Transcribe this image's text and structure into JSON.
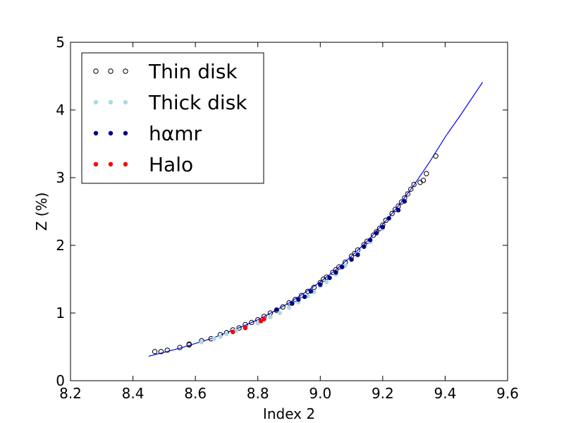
{
  "chart_data": {
    "type": "scatter",
    "title": "",
    "xlabel": "Index  2",
    "ylabel": "Z (%)",
    "xlim": [
      8.2,
      9.6
    ],
    "ylim": [
      0,
      5
    ],
    "xticks": [
      "8.2",
      "8.4",
      "8.6",
      "8.8",
      "9.0",
      "9.2",
      "9.4",
      "9.6"
    ],
    "yticks": [
      "0",
      "1",
      "2",
      "3",
      "4",
      "5"
    ],
    "grid": false,
    "legend_position": "top-left",
    "legend": [
      {
        "label": "Thin disk",
        "marker": "open-circle",
        "color": "#000000"
      },
      {
        "label": "Thick disk",
        "marker": "filled-circle",
        "color": "#add8e6"
      },
      {
        "label": "hαmr",
        "marker": "filled-circle",
        "color": "#00008b"
      },
      {
        "label": "Halo",
        "marker": "filled-circle",
        "color": "#ff0000"
      }
    ],
    "fit_curve": {
      "color": "#0000ff",
      "points": [
        [
          8.45,
          0.36
        ],
        [
          8.5,
          0.42
        ],
        [
          8.55,
          0.48
        ],
        [
          8.6,
          0.55
        ],
        [
          8.65,
          0.62
        ],
        [
          8.7,
          0.71
        ],
        [
          8.75,
          0.8
        ],
        [
          8.8,
          0.9
        ],
        [
          8.85,
          1.02
        ],
        [
          8.9,
          1.15
        ],
        [
          8.95,
          1.3
        ],
        [
          9.0,
          1.46
        ],
        [
          9.05,
          1.64
        ],
        [
          9.1,
          1.84
        ],
        [
          9.15,
          2.06
        ],
        [
          9.2,
          2.31
        ],
        [
          9.25,
          2.58
        ],
        [
          9.3,
          2.89
        ],
        [
          9.35,
          3.23
        ],
        [
          9.4,
          3.6
        ],
        [
          9.45,
          3.93
        ],
        [
          9.52,
          4.41
        ]
      ]
    },
    "series": [
      {
        "name": "Thin disk",
        "points": [
          [
            8.47,
            0.43
          ],
          [
            8.49,
            0.43
          ],
          [
            8.51,
            0.45
          ],
          [
            8.55,
            0.49
          ],
          [
            8.58,
            0.53
          ],
          [
            8.58,
            0.54
          ],
          [
            8.62,
            0.59
          ],
          [
            8.65,
            0.62
          ],
          [
            8.68,
            0.68
          ],
          [
            8.7,
            0.71
          ],
          [
            8.72,
            0.75
          ],
          [
            8.74,
            0.78
          ],
          [
            8.76,
            0.83
          ],
          [
            8.78,
            0.86
          ],
          [
            8.8,
            0.9
          ],
          [
            8.82,
            0.95
          ],
          [
            8.84,
            1.0
          ],
          [
            8.86,
            1.04
          ],
          [
            8.88,
            1.09
          ],
          [
            8.9,
            1.15
          ],
          [
            8.92,
            1.2
          ],
          [
            8.94,
            1.26
          ],
          [
            8.96,
            1.32
          ],
          [
            8.98,
            1.38
          ],
          [
            9.0,
            1.45
          ],
          [
            9.01,
            1.5
          ],
          [
            9.02,
            1.53
          ],
          [
            9.04,
            1.6
          ],
          [
            9.05,
            1.64
          ],
          [
            9.06,
            1.68
          ],
          [
            9.08,
            1.75
          ],
          [
            9.1,
            1.84
          ],
          [
            9.11,
            1.88
          ],
          [
            9.12,
            1.93
          ],
          [
            9.14,
            2.01
          ],
          [
            9.15,
            2.06
          ],
          [
            9.17,
            2.15
          ],
          [
            9.18,
            2.2
          ],
          [
            9.19,
            2.25
          ],
          [
            9.2,
            2.3
          ],
          [
            9.21,
            2.37
          ],
          [
            9.23,
            2.47
          ],
          [
            9.24,
            2.53
          ],
          [
            9.25,
            2.58
          ],
          [
            9.26,
            2.64
          ],
          [
            9.27,
            2.7
          ],
          [
            9.28,
            2.76
          ],
          [
            9.29,
            2.83
          ],
          [
            9.3,
            2.9
          ],
          [
            9.32,
            2.93
          ],
          [
            9.33,
            2.96
          ],
          [
            9.34,
            3.06
          ],
          [
            9.37,
            3.32
          ]
        ]
      },
      {
        "name": "Thick disk",
        "points": [
          [
            8.62,
            0.57
          ],
          [
            8.66,
            0.62
          ],
          [
            8.68,
            0.65
          ],
          [
            8.7,
            0.69
          ],
          [
            8.73,
            0.74
          ],
          [
            8.76,
            0.78
          ],
          [
            8.8,
            0.85
          ],
          [
            8.84,
            0.94
          ],
          [
            8.87,
            1.0
          ],
          [
            8.9,
            1.08
          ],
          [
            8.93,
            1.16
          ],
          [
            8.96,
            1.25
          ],
          [
            8.98,
            1.31
          ],
          [
            9.0,
            1.4
          ],
          [
            9.02,
            1.46
          ],
          [
            9.05,
            1.57
          ],
          [
            9.08,
            1.7
          ],
          [
            9.12,
            1.88
          ],
          [
            9.16,
            2.05
          ],
          [
            9.2,
            2.25
          ]
        ]
      },
      {
        "name": "hαmr",
        "points": [
          [
            8.86,
            1.05
          ],
          [
            8.91,
            1.14
          ],
          [
            8.93,
            1.2
          ],
          [
            8.95,
            1.24
          ],
          [
            8.97,
            1.32
          ],
          [
            9.0,
            1.42
          ],
          [
            9.03,
            1.52
          ],
          [
            9.05,
            1.6
          ],
          [
            9.07,
            1.68
          ],
          [
            9.1,
            1.79
          ],
          [
            9.12,
            1.86
          ],
          [
            9.14,
            1.98
          ],
          [
            9.16,
            2.08
          ],
          [
            9.18,
            2.18
          ],
          [
            9.2,
            2.27
          ],
          [
            9.22,
            2.4
          ],
          [
            9.25,
            2.52
          ],
          [
            9.27,
            2.65
          ]
        ]
      },
      {
        "name": "Halo",
        "points": [
          [
            8.72,
            0.72
          ],
          [
            8.76,
            0.78
          ],
          [
            8.81,
            0.88
          ],
          [
            8.82,
            0.91
          ]
        ]
      }
    ]
  }
}
